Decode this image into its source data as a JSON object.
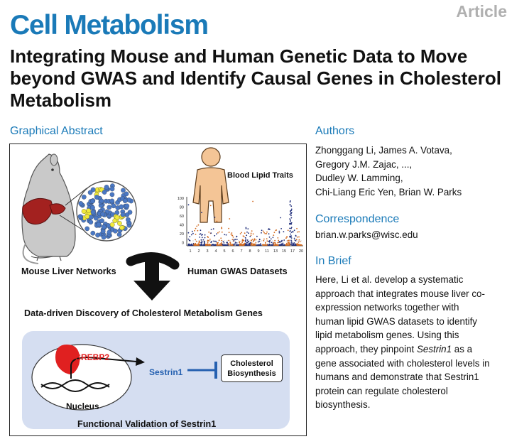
{
  "header": {
    "journal": "Cell Metabolism",
    "article_type": "Article",
    "title": "Integrating Mouse and Human Genetic Data to Move beyond GWAS and Identify Causal Genes in Cholesterol Metabolism"
  },
  "graphical_abstract": {
    "heading": "Graphical Abstract",
    "mouse_label": "Mouse Liver Networks",
    "gwas_label": "Human GWAS Datasets",
    "blood_label": "Blood Lipid Traits",
    "discovery_label": "Data-driven Discovery of Cholesterol Metabolism Genes",
    "srebp2_label": "SREBP2",
    "sestrin_label": "Sestrin1",
    "nucleus_label": "Nucleus",
    "cholesterol_line1": "Cholesterol",
    "cholesterol_line2": "Biosynthesis",
    "validation_label": "Functional Validation of Sestrin1",
    "manhattan": {
      "y_ticks": [
        "100",
        "80",
        "60",
        "40",
        "20",
        "0"
      ],
      "x_ticks": [
        "1",
        "2",
        "3",
        "4",
        "5",
        "6",
        "7",
        "8",
        "9",
        "11",
        "13",
        "15",
        "17",
        "20"
      ]
    },
    "colors": {
      "liver": "#a3211f",
      "mouse_body": "#c9c9c9",
      "human_body": "#f4c596",
      "network_node": "#4a78c4",
      "network_highlight": "#f2ea3a",
      "srebp2": "#e02020",
      "sestrin": "#2560b0",
      "panel_bg": "#d5def1",
      "manhattan_blue": "#1f2d7a",
      "manhattan_orange": "#d2691e"
    }
  },
  "authors": {
    "heading": "Authors",
    "lines": [
      "Zhonggang Li, James A. Votava,",
      "Gregory J.M. Zajac, ...,",
      "Dudley W. Lamming,",
      "Chi-Liang Eric Yen, Brian W. Parks"
    ]
  },
  "correspondence": {
    "heading": "Correspondence",
    "email": "brian.w.parks@wisc.edu"
  },
  "in_brief": {
    "heading": "In Brief",
    "lines": [
      "Here, Li et al. develop a systematic",
      "approach that integrates mouse liver co-",
      "expression networks together with",
      "human lipid GWAS datasets to identify",
      "lipid metabolism genes. Using this",
      "approach, they pinpoint ",
      "Sestrin1",
      " as a",
      "gene associated with cholesterol levels in",
      "humans and demonstrate that Sestrin1",
      "protein can regulate cholesterol",
      "biosynthesis."
    ]
  }
}
